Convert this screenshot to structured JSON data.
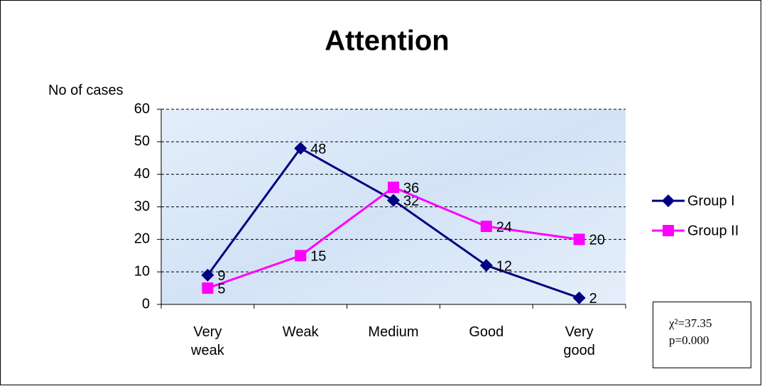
{
  "chart_data": {
    "type": "line",
    "title": "Attention",
    "y_label": "No of cases",
    "categories": [
      "Very weak",
      "Weak",
      "Medium",
      "Good",
      "Very good"
    ],
    "series": [
      {
        "name": "Group I",
        "color": "#000080",
        "marker": "diamond",
        "values": [
          9,
          48,
          32,
          12,
          2
        ]
      },
      {
        "name": "Group II",
        "color": "#ff00ff",
        "marker": "square",
        "values": [
          5,
          15,
          36,
          24,
          20
        ]
      }
    ],
    "ylim": [
      0,
      60
    ],
    "yticks": [
      0,
      10,
      20,
      30,
      40,
      50,
      60
    ],
    "grid": true,
    "legend": "right",
    "annotation": [
      "χ²=37.35",
      "p=0.000"
    ]
  }
}
